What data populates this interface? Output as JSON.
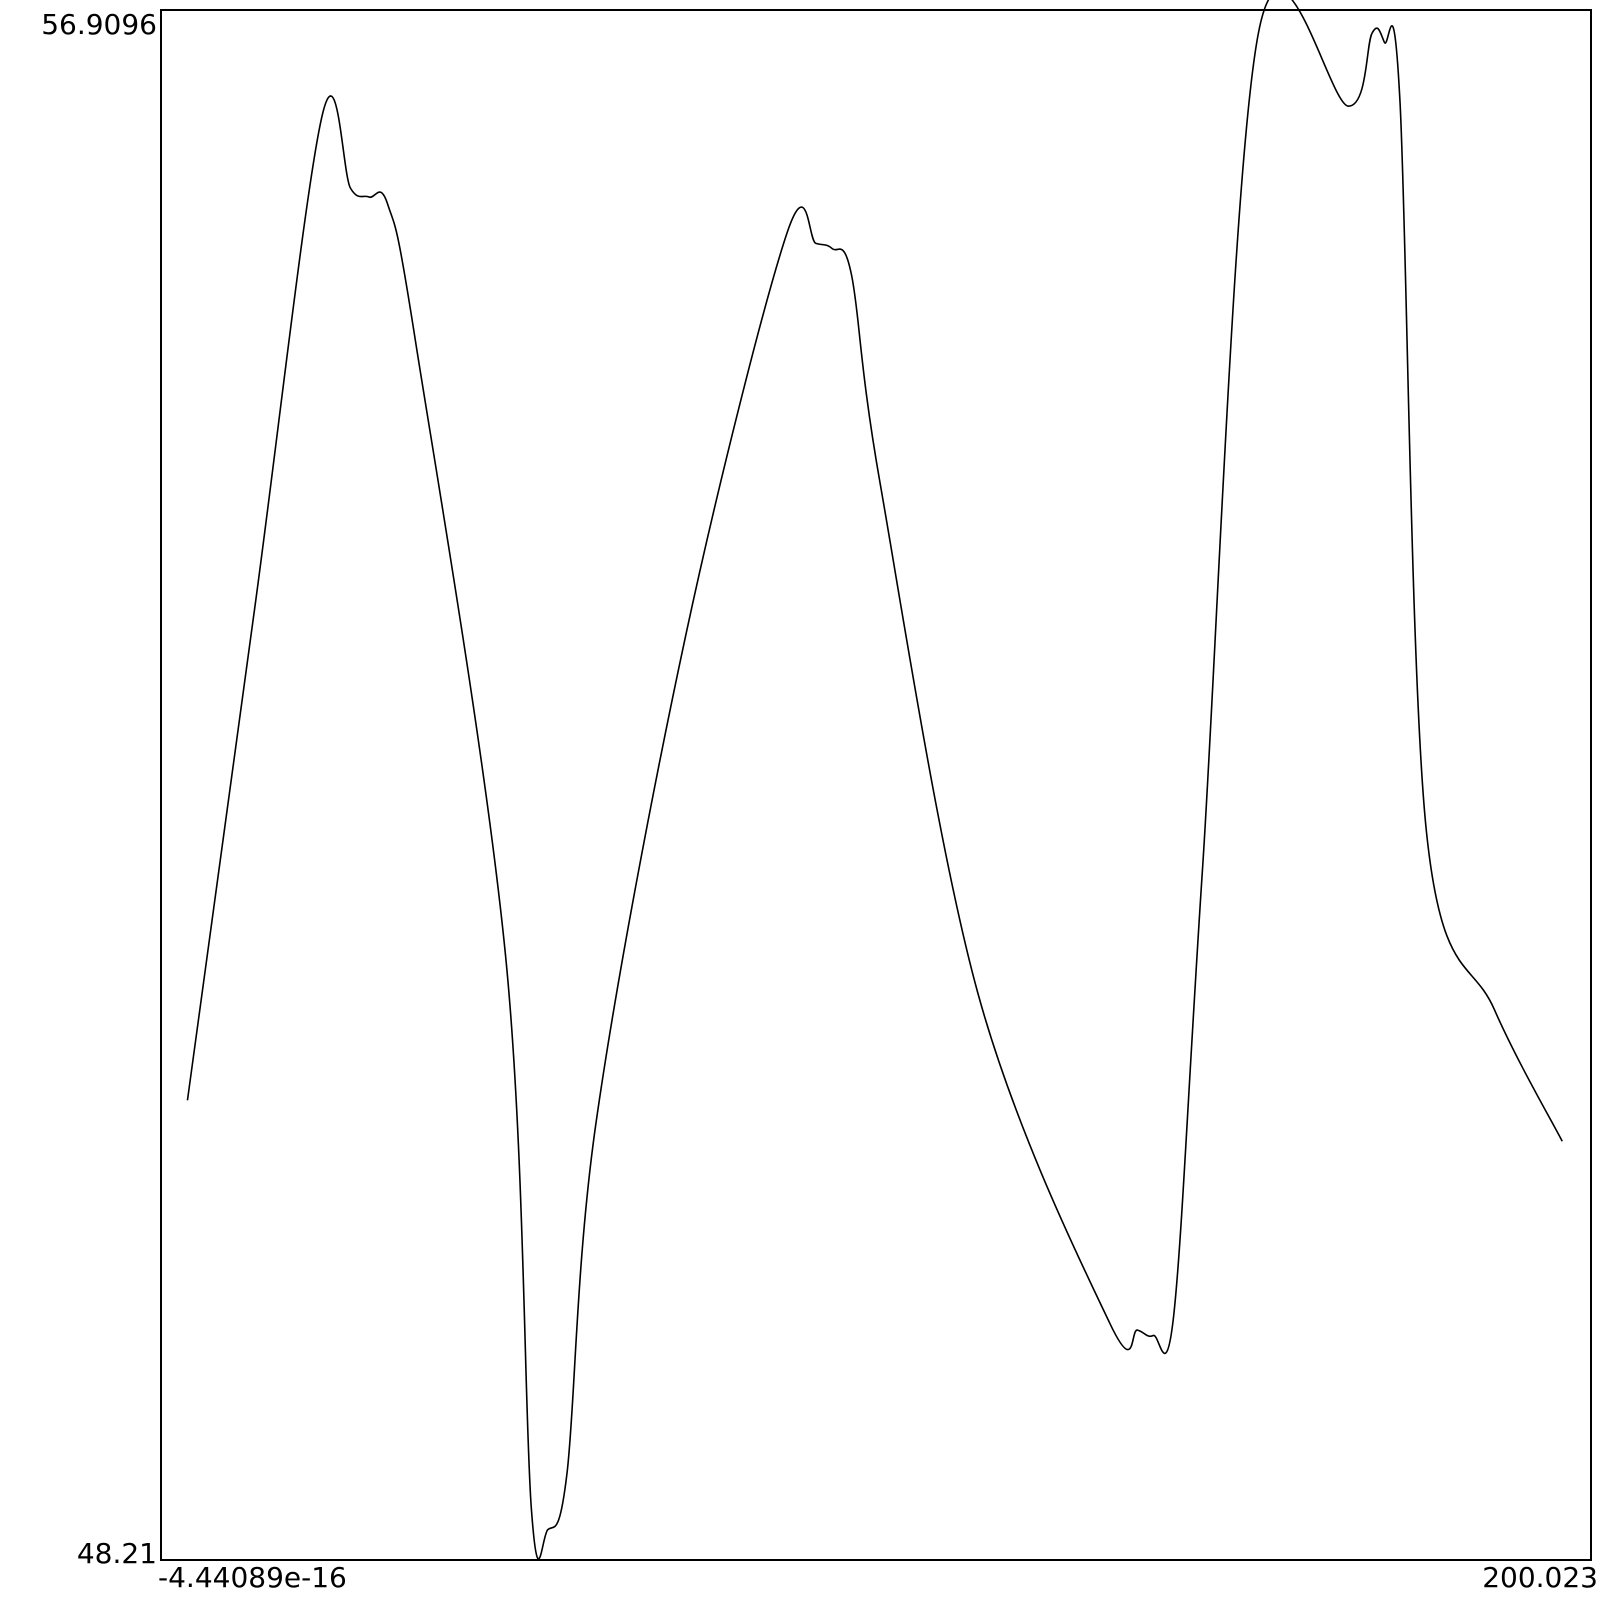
{
  "chart_data": {
    "type": "line",
    "title": "",
    "xlabel": "",
    "ylabel": "",
    "xlim": [
      -4.44089e-16,
      200.023
    ],
    "ylim": [
      48.21,
      56.9096
    ],
    "grid": false,
    "legend": "none",
    "tick_labels": {
      "x_min": "-4.44089e-16",
      "x_max": "200.023",
      "y_min": "48.21",
      "y_max": "56.9096"
    },
    "colors": {
      "line": "#000000",
      "frame": "#000000",
      "background": "#ffffff"
    },
    "series": [
      {
        "x": [
          3.7,
          13.1,
          22.5,
          26.5,
          29.1,
          31.7,
          35.6,
          48.2,
          51.8,
          54.1,
          56.8,
          60.8,
          73.4,
          87.5,
          91.6,
          93.9,
          96.6,
          100.6,
          114.2,
          132.7,
          136.6,
          138.8,
          141.7,
          145.7,
          153.5,
          166.1,
          169.4,
          171.1,
          173.3,
          177.0,
          186.5,
          196.0
        ],
        "y": [
          50.79,
          53.55,
          56.31,
          55.91,
          55.86,
          55.82,
          55.05,
          51.6,
          48.5,
          48.38,
          48.7,
          50.65,
          53.4,
          55.65,
          55.6,
          55.57,
          55.42,
          54.25,
          51.4,
          49.54,
          49.5,
          49.47,
          49.6,
          52.1,
          56.78,
          56.37,
          56.78,
          56.73,
          56.4,
          52.3,
          51.3,
          50.56
        ]
      }
    ]
  }
}
